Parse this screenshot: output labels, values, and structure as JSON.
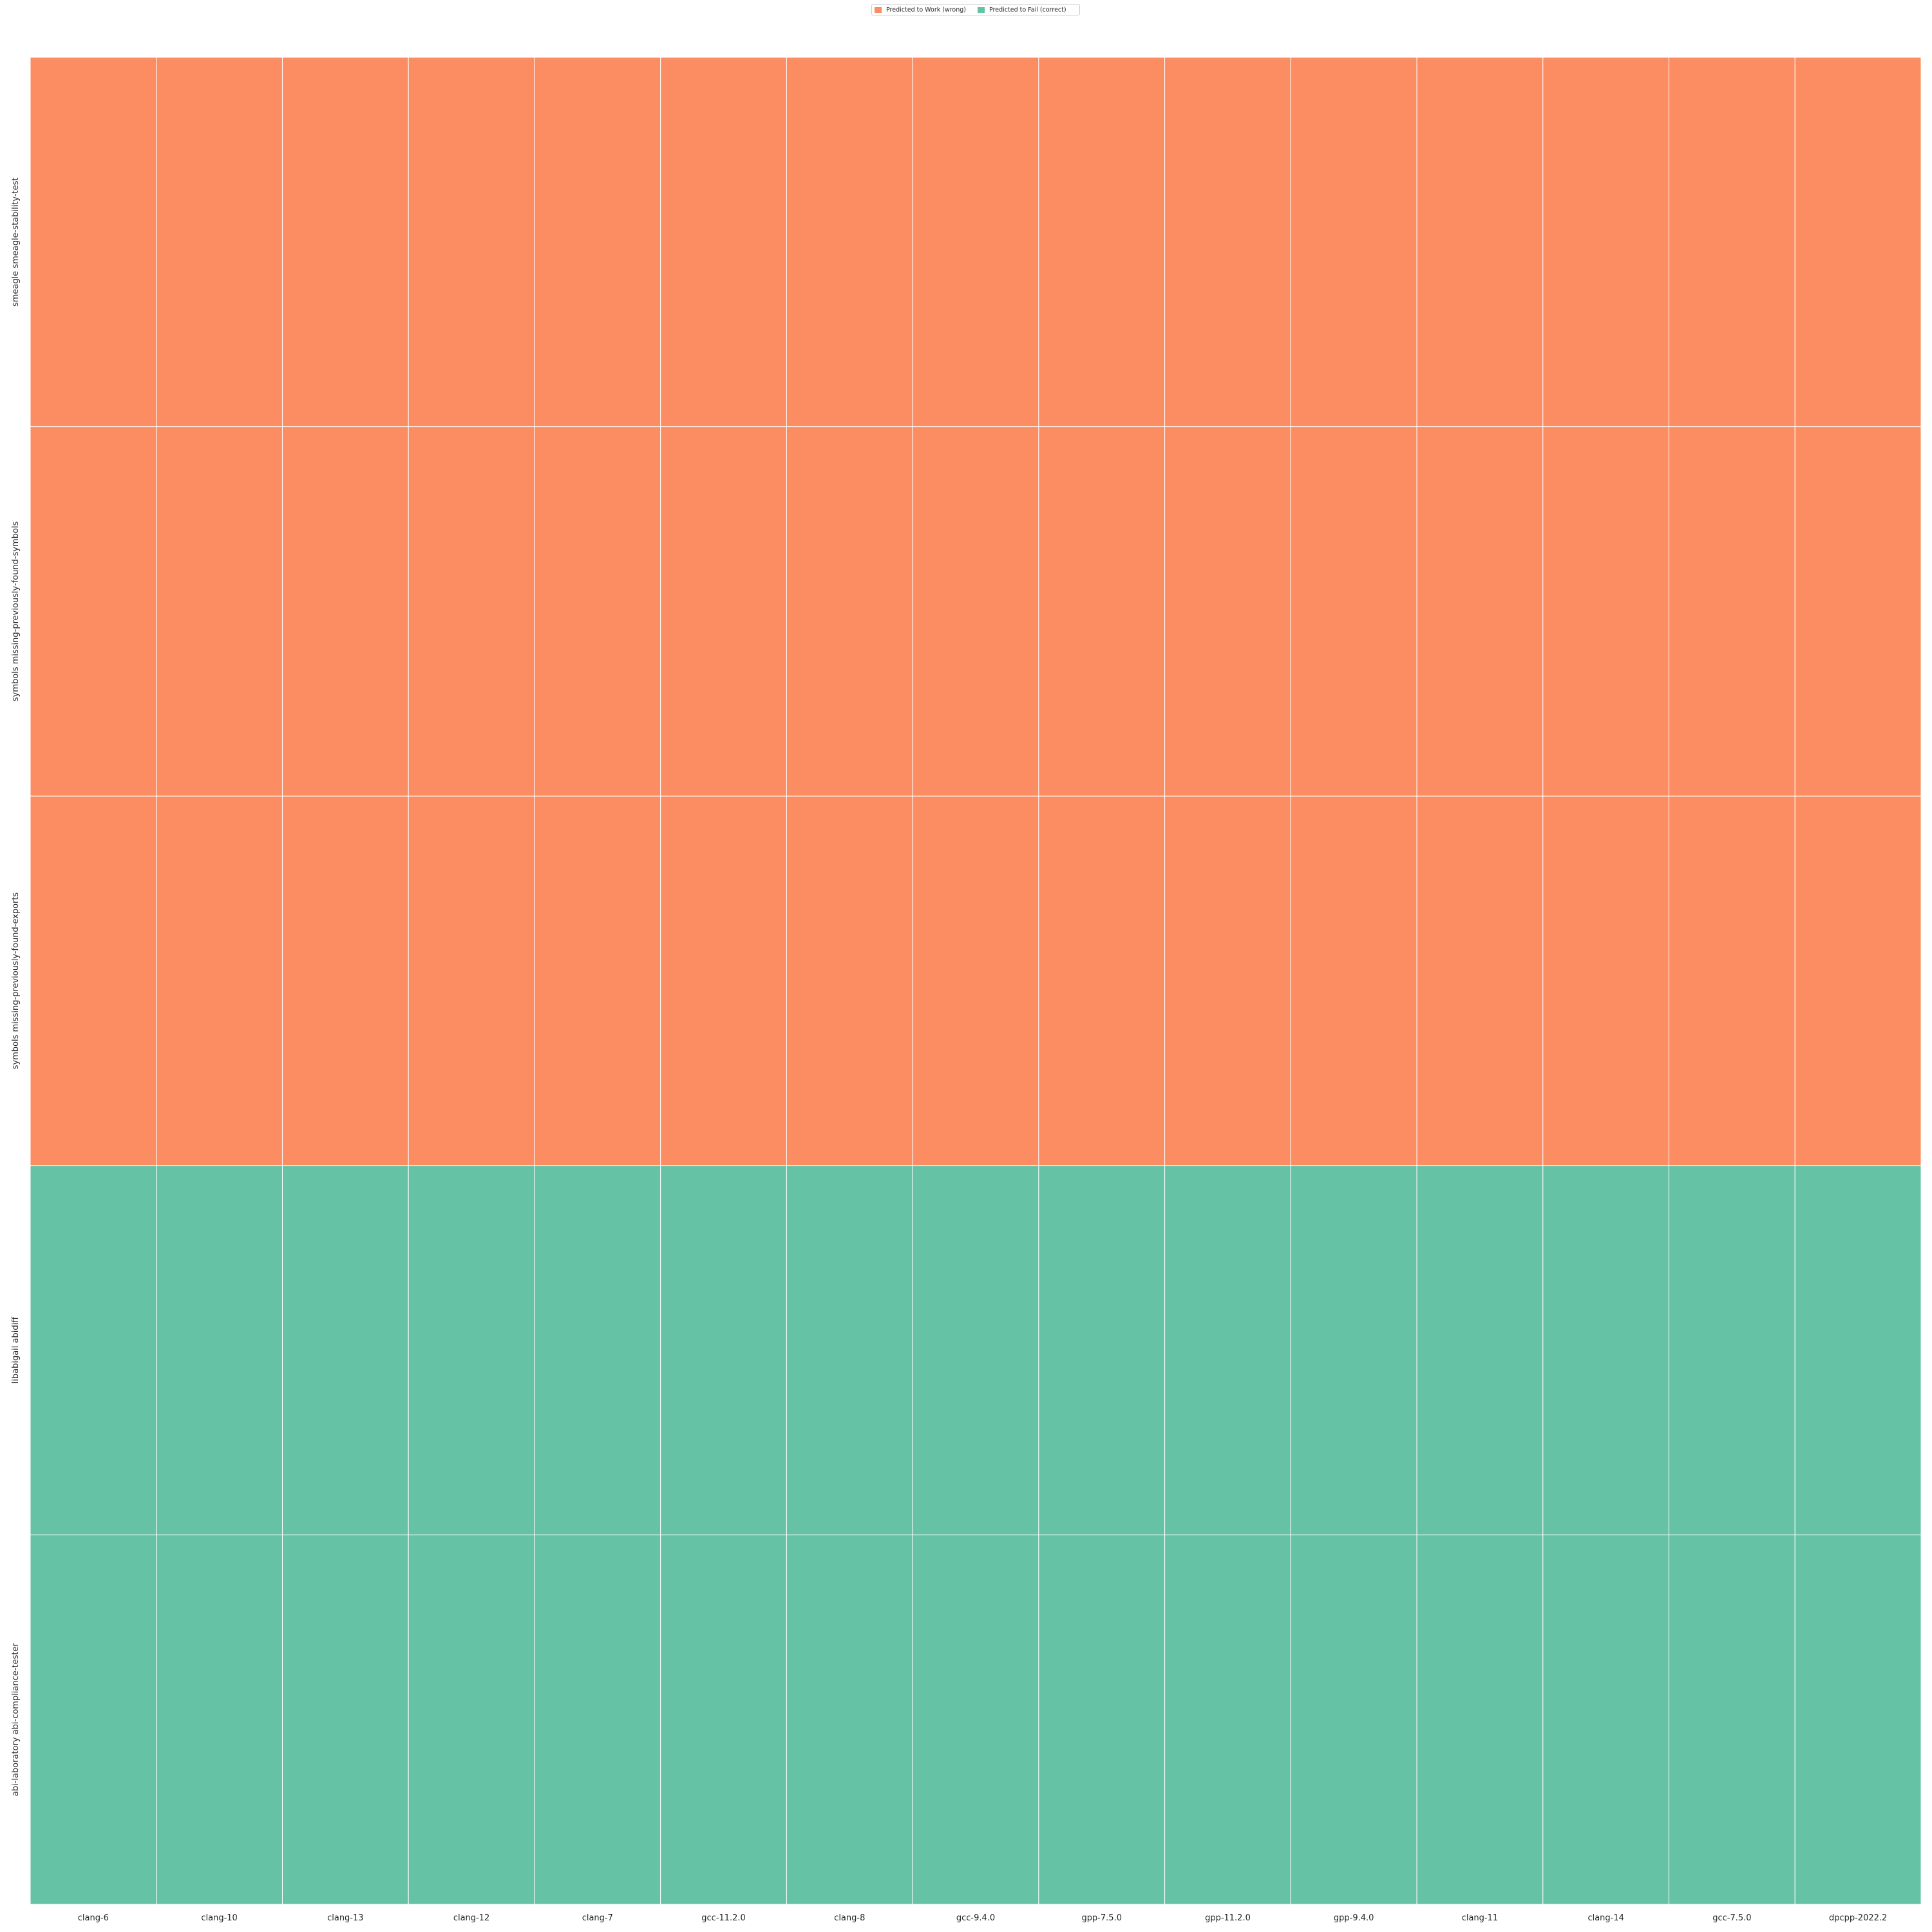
{
  "chart_data": {
    "type": "heatmap",
    "title": "",
    "xlabel": "",
    "ylabel": "",
    "x_categories": [
      "clang-6",
      "clang-10",
      "clang-13",
      "clang-12",
      "clang-7",
      "gcc-11.2.0",
      "clang-8",
      "gcc-9.4.0",
      "gpp-7.5.0",
      "gpp-11.2.0",
      "gpp-9.4.0",
      "clang-11",
      "clang-14",
      "gcc-7.5.0",
      "dpcpp-2022.2"
    ],
    "y_categories": [
      "smeagle smeagle-stability-test",
      "symbols missing-previously-found-symbols",
      "symbols missing-previously-found-exports",
      "libabigail abidiff",
      "abi-laboratory abi-compliance-tester"
    ],
    "classes": [
      {
        "id": 0,
        "label": "Predicted to Work (wrong)",
        "color": "#fc8d62"
      },
      {
        "id": 1,
        "label": "Predicted to Fail (correct)",
        "color": "#66c2a5"
      }
    ],
    "values": [
      [
        0,
        0,
        0,
        0,
        0,
        0,
        0,
        0,
        0,
        0,
        0,
        0,
        0,
        0,
        0
      ],
      [
        0,
        0,
        0,
        0,
        0,
        0,
        0,
        0,
        0,
        0,
        0,
        0,
        0,
        0,
        0
      ],
      [
        0,
        0,
        0,
        0,
        0,
        0,
        0,
        0,
        0,
        0,
        0,
        0,
        0,
        0,
        0
      ],
      [
        1,
        1,
        1,
        1,
        1,
        1,
        1,
        1,
        1,
        1,
        1,
        1,
        1,
        1,
        1
      ],
      [
        1,
        1,
        1,
        1,
        1,
        1,
        1,
        1,
        1,
        1,
        1,
        1,
        1,
        1,
        1
      ]
    ],
    "legend_position": "top-center",
    "grid": true
  }
}
